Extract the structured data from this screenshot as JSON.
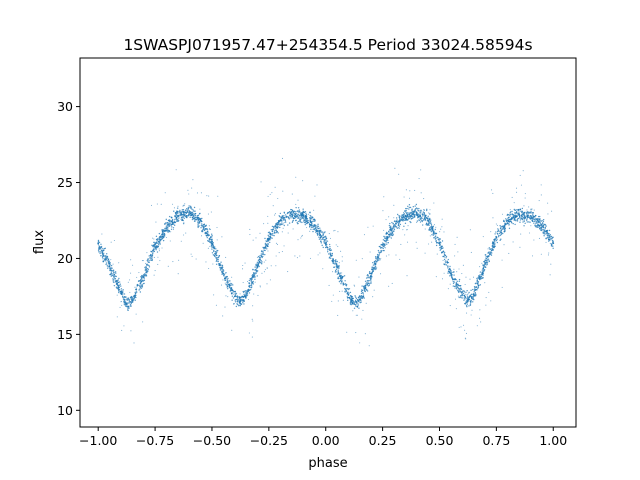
{
  "chart_data": {
    "type": "scatter",
    "title": "1SWASPJ071957.47+254354.5 Period 33024.58594s",
    "xlabel": "phase",
    "ylabel": "flux",
    "xlim": [
      -1.08,
      1.1
    ],
    "ylim": [
      8.9,
      33.2
    ],
    "xticks": [
      -1.0,
      -0.75,
      -0.5,
      -0.25,
      0.0,
      0.25,
      0.5,
      0.75,
      1.0
    ],
    "xtick_labels": [
      "−1.00",
      "−0.75",
      "−0.50",
      "−0.25",
      "0.00",
      "0.25",
      "0.50",
      "0.75",
      "1.00"
    ],
    "yticks": [
      10,
      15,
      20,
      25,
      30
    ],
    "ytick_labels": [
      "10",
      "15",
      "20",
      "25",
      "30"
    ],
    "grid": false,
    "point_color": "#1f77b4",
    "series": [
      {
        "x": [
          -1.0,
          -0.95,
          -0.9,
          -0.875,
          -0.85,
          -0.8,
          -0.75,
          -0.7,
          -0.65,
          -0.6,
          -0.55,
          -0.5,
          -0.45,
          -0.4,
          -0.375,
          -0.35,
          -0.3,
          -0.25,
          -0.2,
          -0.15,
          -0.1,
          -0.05,
          0.0,
          0.05,
          0.1,
          0.125,
          0.15,
          0.2,
          0.25,
          0.3,
          0.35,
          0.4,
          0.45,
          0.5,
          0.55,
          0.6,
          0.625,
          0.65,
          0.7,
          0.75,
          0.8,
          0.85,
          0.9,
          0.95,
          1.0
        ],
        "y": [
          21.0,
          19.5,
          17.8,
          17.0,
          17.2,
          18.8,
          20.8,
          22.0,
          22.8,
          23.0,
          22.5,
          21.0,
          19.0,
          17.5,
          17.2,
          17.6,
          19.5,
          21.3,
          22.5,
          22.9,
          22.8,
          22.2,
          21.0,
          19.4,
          17.6,
          17.0,
          17.3,
          19.0,
          20.9,
          22.1,
          22.8,
          23.0,
          22.5,
          21.0,
          19.0,
          17.6,
          17.2,
          17.6,
          19.6,
          21.4,
          22.5,
          22.9,
          22.8,
          22.2,
          21.0
        ]
      }
    ]
  }
}
